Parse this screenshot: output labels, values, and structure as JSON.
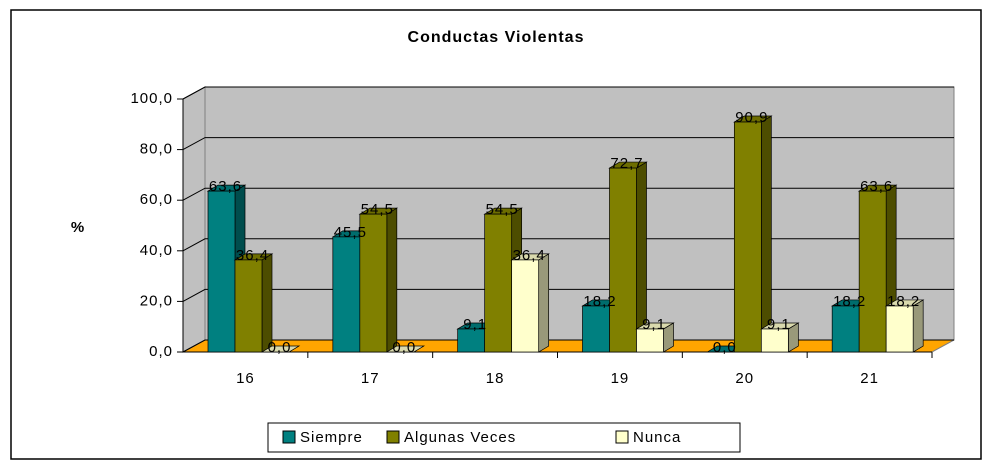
{
  "chart_data": {
    "type": "bar3d",
    "title": "Conductas Violentas",
    "y_label": "%",
    "categories": [
      "16",
      "17",
      "18",
      "19",
      "20",
      "21"
    ],
    "series": [
      {
        "name": "Siempre",
        "color": "#008080",
        "values": [
          63.6,
          45.5,
          9.1,
          18.2,
          0.0,
          18.2
        ],
        "value_labels": [
          "63,6",
          "45,5",
          "9,1",
          "18,2",
          "0,0",
          "18,2"
        ]
      },
      {
        "name": "Algunas Veces",
        "color": "#808000",
        "values": [
          36.4,
          54.5,
          54.5,
          72.7,
          90.9,
          63.6
        ],
        "value_labels": [
          "36,4",
          "54,5",
          "54,5",
          "72,7",
          "90,9",
          "63,6"
        ]
      },
      {
        "name": "Nunca",
        "color": "#ffffcc",
        "values": [
          0.0,
          0.0,
          36.4,
          9.1,
          9.1,
          18.2
        ],
        "value_labels": [
          "0,0",
          "0,0",
          "36,4",
          "9,1",
          "9,1",
          "18,2"
        ]
      }
    ],
    "ylim": [
      0,
      100
    ],
    "yticks": [
      {
        "value": 0,
        "label": "0,0"
      },
      {
        "value": 20,
        "label": "20,0"
      },
      {
        "value": 40,
        "label": "40,0"
      },
      {
        "value": 60,
        "label": "60,0"
      },
      {
        "value": 80,
        "label": "80,0"
      },
      {
        "value": 100,
        "label": "100,0"
      }
    ],
    "grid": true,
    "wall_color": "#c0c0c0",
    "floor_color": "#ffa500",
    "legend": "bottom"
  }
}
